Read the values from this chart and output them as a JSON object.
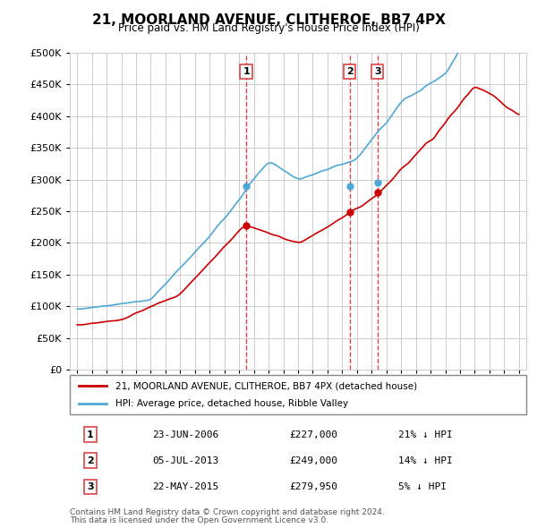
{
  "title": "21, MOORLAND AVENUE, CLITHEROE, BB7 4PX",
  "subtitle": "Price paid vs. HM Land Registry's House Price Index (HPI)",
  "legend_line1": "21, MOORLAND AVENUE, CLITHEROE, BB7 4PX (detached house)",
  "legend_line2": "HPI: Average price, detached house, Ribble Valley",
  "footer1": "Contains HM Land Registry data © Crown copyright and database right 2024.",
  "footer2": "This data is licensed under the Open Government Licence v3.0.",
  "transactions": [
    {
      "label": "1",
      "date": "23-JUN-2006",
      "price": "£227,000",
      "note": "21% ↓ HPI",
      "x_year": 2006.48
    },
    {
      "label": "2",
      "date": "05-JUL-2013",
      "price": "£249,000",
      "note": "14% ↓ HPI",
      "x_year": 2013.51
    },
    {
      "label": "3",
      "date": "22-MAY-2015",
      "price": "£279,950",
      "note": "5% ↓ HPI",
      "x_year": 2015.39
    }
  ],
  "red_line_color": "#cc0000",
  "blue_line_color": "#4fa8d5",
  "vline_color": "#dd4444",
  "marker_color": "#cc0000",
  "ylim": [
    0,
    500000
  ],
  "xlim_start": 1994.5,
  "xlim_end": 2025.5,
  "ytick_step": 50000,
  "background_color": "#ffffff",
  "grid_color": "#cccccc"
}
